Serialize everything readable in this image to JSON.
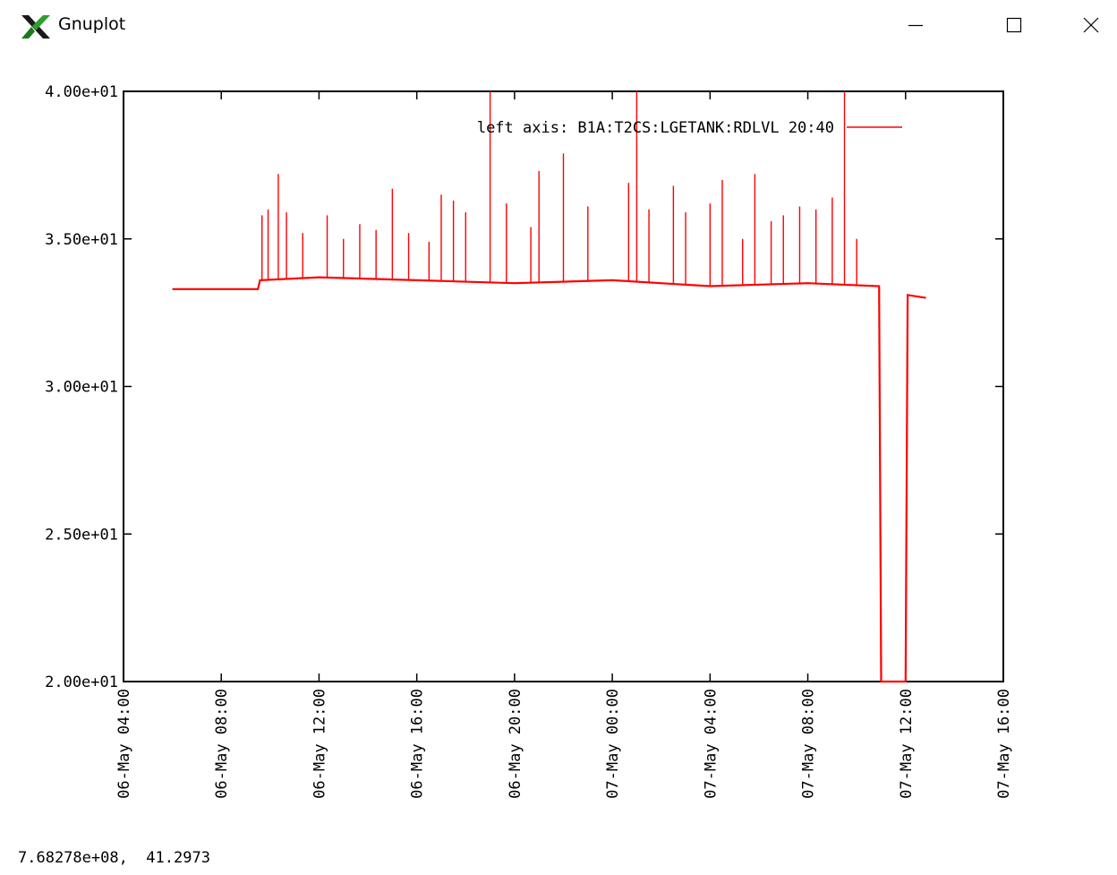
{
  "window": {
    "title": "Gnuplot",
    "icon": "x-logo-icon",
    "buttons": {
      "minimize": "minimize-icon",
      "maximize": "maximize-icon",
      "close": "close-icon"
    }
  },
  "status_text": "7.68278e+08,  41.2973",
  "chart_data": {
    "type": "line",
    "legend": {
      "label": "left axis: B1A:T2CS:LGETANK:RDLVL 20:40",
      "placement": "top-right",
      "color": "#ff0000"
    },
    "yticks": [
      "4.00e+01",
      "3.50e+01",
      "3.00e+01",
      "2.50e+01",
      "2.00e+01"
    ],
    "ytick_values": [
      40,
      35,
      30,
      25,
      20
    ],
    "xticks": [
      "06-May 04:00",
      "06-May 08:00",
      "06-May 12:00",
      "06-May 16:00",
      "06-May 20:00",
      "07-May 00:00",
      "07-May 04:00",
      "07-May 08:00",
      "07-May 12:00",
      "07-May 16:00"
    ],
    "ylim": [
      20,
      40
    ],
    "xlim": [
      "06-May 04:00",
      "07-May 16:00"
    ],
    "grid": false,
    "series": [
      {
        "color": "#ff0000",
        "baseline": [
          [
            "06-May 06:00",
            33.3
          ],
          [
            "06-May 09:30",
            33.3
          ],
          [
            "06-May 09:35",
            33.6
          ],
          [
            "06-May 12:00",
            33.7
          ],
          [
            "06-May 16:00",
            33.6
          ],
          [
            "06-May 20:00",
            33.5
          ],
          [
            "07-May 00:00",
            33.6
          ],
          [
            "07-May 04:00",
            33.4
          ],
          [
            "07-May 08:00",
            33.5
          ],
          [
            "07-May 10:55",
            33.4
          ],
          [
            "07-May 11:00",
            20.0
          ],
          [
            "07-May 12:00",
            20.0
          ],
          [
            "07-May 12:05",
            33.1
          ],
          [
            "07-May 12:50",
            33.0
          ]
        ],
        "spikes": [
          [
            "06-May 09:40",
            35.8
          ],
          [
            "06-May 09:55",
            36.0
          ],
          [
            "06-May 10:20",
            37.2
          ],
          [
            "06-May 10:40",
            35.9
          ],
          [
            "06-May 11:20",
            35.2
          ],
          [
            "06-May 12:20",
            35.8
          ],
          [
            "06-May 13:00",
            35.0
          ],
          [
            "06-May 13:40",
            35.5
          ],
          [
            "06-May 14:20",
            35.3
          ],
          [
            "06-May 15:00",
            36.7
          ],
          [
            "06-May 15:40",
            35.2
          ],
          [
            "06-May 16:30",
            34.9
          ],
          [
            "06-May 17:00",
            36.5
          ],
          [
            "06-May 17:30",
            36.3
          ],
          [
            "06-May 18:00",
            35.9
          ],
          [
            "06-May 19:00",
            40.0
          ],
          [
            "06-May 19:40",
            36.2
          ],
          [
            "06-May 20:40",
            35.4
          ],
          [
            "06-May 21:00",
            37.3
          ],
          [
            "06-May 22:00",
            37.9
          ],
          [
            "06-May 23:00",
            36.1
          ],
          [
            "07-May 00:40",
            36.9
          ],
          [
            "07-May 01:00",
            40.0
          ],
          [
            "07-May 01:30",
            36.0
          ],
          [
            "07-May 02:30",
            36.8
          ],
          [
            "07-May 03:00",
            35.9
          ],
          [
            "07-May 04:00",
            36.2
          ],
          [
            "07-May 04:30",
            37.0
          ],
          [
            "07-May 05:20",
            35.0
          ],
          [
            "07-May 05:50",
            37.2
          ],
          [
            "07-May 06:30",
            35.6
          ],
          [
            "07-May 07:00",
            35.8
          ],
          [
            "07-May 07:40",
            36.1
          ],
          [
            "07-May 08:20",
            36.0
          ],
          [
            "07-May 09:00",
            36.4
          ],
          [
            "07-May 09:30",
            40.0
          ],
          [
            "07-May 10:00",
            35.0
          ]
        ]
      }
    ]
  }
}
